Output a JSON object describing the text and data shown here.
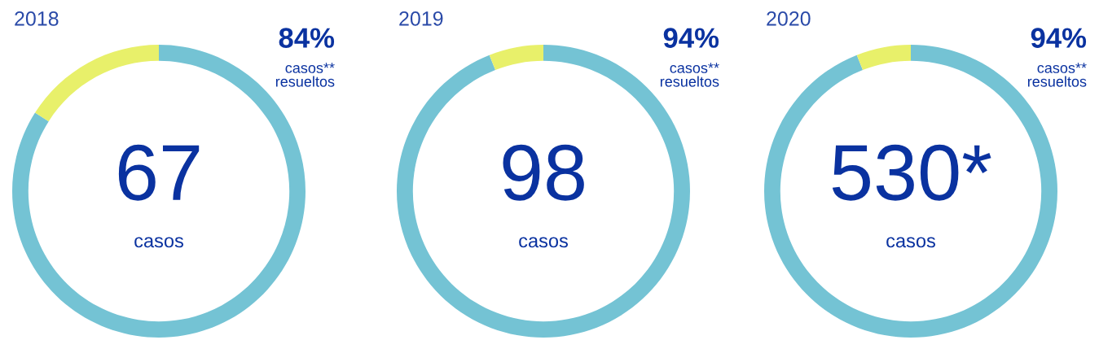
{
  "chart_data": [
    {
      "type": "donut",
      "title": "2018",
      "categories": [
        "casos** resueltos",
        null
      ],
      "values": [
        84,
        16
      ],
      "colors": [
        "#74c3d4",
        "#e8f06a"
      ],
      "value_labels": [
        "84%",
        null
      ],
      "annotations": [
        "67",
        "casos"
      ],
      "legend": false
    },
    {
      "type": "donut",
      "title": "2019",
      "categories": [
        "casos** resueltos",
        null
      ],
      "values": [
        94,
        6
      ],
      "colors": [
        "#74c3d4",
        "#e8f06a"
      ],
      "value_labels": [
        "94%",
        null
      ],
      "annotations": [
        "98",
        "casos"
      ],
      "legend": false
    },
    {
      "type": "donut",
      "title": "2020",
      "categories": [
        "casos** resueltos",
        null
      ],
      "values": [
        94,
        6
      ],
      "colors": [
        "#74c3d4",
        "#e8f06a"
      ],
      "value_labels": [
        "94%",
        null
      ],
      "annotations": [
        "530*",
        "casos"
      ],
      "legend": false
    }
  ]
}
